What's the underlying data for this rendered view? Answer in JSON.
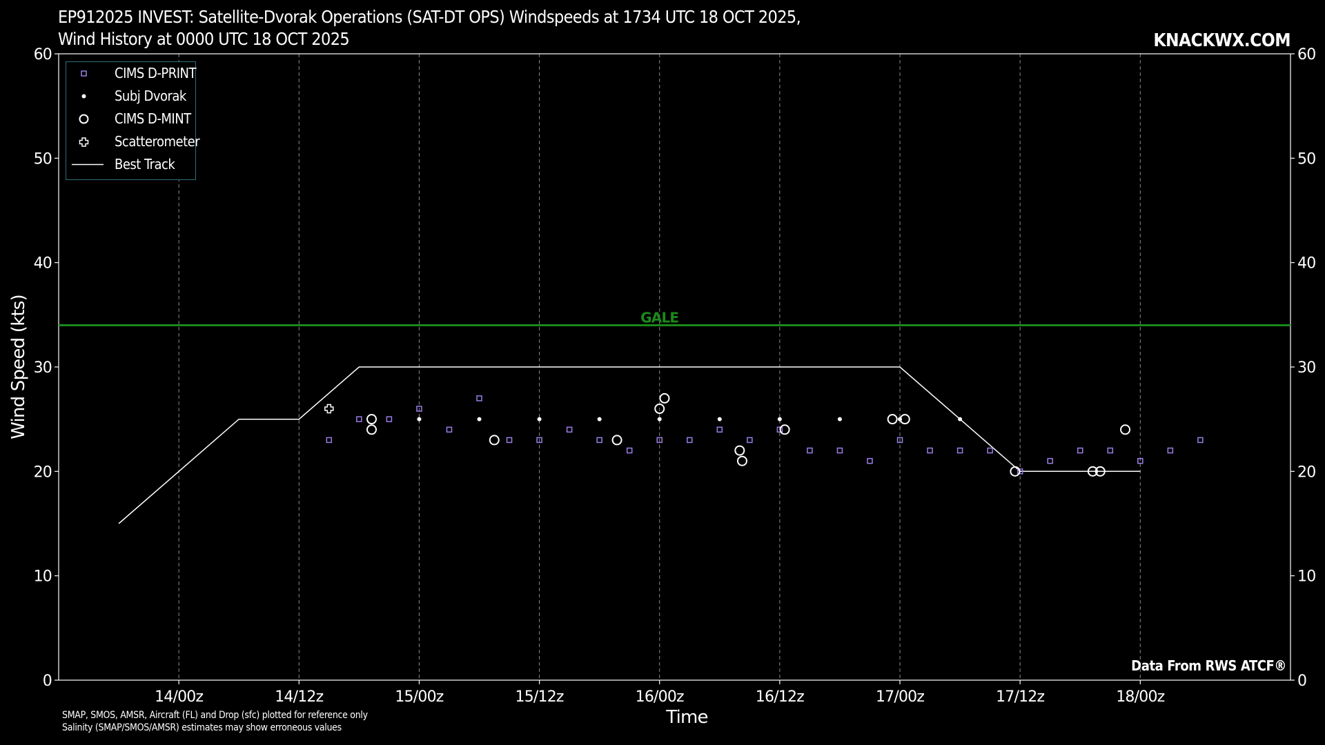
{
  "header": {
    "title_line1": "EP912025 INVEST: Satellite-Dvorak Operations (SAT-DT OPS) Windspeeds at 1734 UTC 18 OCT 2025,",
    "title_line2": "Wind History at 0000 UTC 18 OCT 2025",
    "brand": "KNACKWX.COM"
  },
  "footer": {
    "note_line1": "SMAP, SMOS, AMSR, Aircraft (FL) and Drop (sfc) plotted for reference only",
    "note_line2": "Salinity (SMAP/SMOS/AMSR) estimates may show erroneous values",
    "source": "Data From RWS ATCF®"
  },
  "colors": {
    "background": "#000000",
    "dprint": "#9b7fe8",
    "gale": "#1a8a1a",
    "best_track": "#ffffff",
    "grid": "#8a8a8a",
    "legend_border": "#2f6f78"
  },
  "chart_data": {
    "type": "scatter",
    "title": "EP912025 INVEST: Satellite-Dvorak Operations (SAT-DT OPS) Windspeeds at 1734 UTC 18 OCT 2025, Wind History at 0000 UTC 18 OCT 2025",
    "xlabel": "Time",
    "ylabel": "Wind Speed (kts)",
    "xlim": [
      "13/12z",
      "18/15z"
    ],
    "ylim": [
      0,
      60
    ],
    "y_ticks": [
      0,
      10,
      20,
      30,
      40,
      50,
      60
    ],
    "x_ticks": [
      "14/00z",
      "14/12z",
      "15/00z",
      "15/12z",
      "16/00z",
      "16/12z",
      "17/00z",
      "17/12z",
      "18/00z"
    ],
    "grid": "vertical dashed lines at x ticks",
    "legend_position": "top-left",
    "reference_lines": [
      {
        "label": "GALE",
        "y": 34,
        "color": "#1a8a1a"
      }
    ],
    "series": [
      {
        "name": "CIMS D-PRINT",
        "marker": "square",
        "color": "#9b7fe8",
        "points": [
          [
            "14/15z",
            23
          ],
          [
            "14/18z",
            25
          ],
          [
            "14/21z",
            25
          ],
          [
            "15/00z",
            26
          ],
          [
            "15/03z",
            24
          ],
          [
            "15/06z",
            27
          ],
          [
            "15/09z",
            23
          ],
          [
            "15/12z",
            23
          ],
          [
            "15/15z",
            24
          ],
          [
            "15/18z",
            23
          ],
          [
            "15/21z",
            22
          ],
          [
            "16/00z",
            23
          ],
          [
            "16/03z",
            23
          ],
          [
            "16/06z",
            24
          ],
          [
            "16/09z",
            23
          ],
          [
            "16/12z",
            24
          ],
          [
            "16/15z",
            22
          ],
          [
            "16/18z",
            22
          ],
          [
            "16/21z",
            21
          ],
          [
            "17/00z",
            23
          ],
          [
            "17/03z",
            22
          ],
          [
            "17/06z",
            22
          ],
          [
            "17/09z",
            22
          ],
          [
            "17/12z",
            20
          ],
          [
            "17/15z",
            21
          ],
          [
            "17/18z",
            22
          ],
          [
            "17/21z",
            22
          ],
          [
            "18/00z",
            21
          ],
          [
            "18/03z",
            22
          ],
          [
            "18/06z",
            23
          ]
        ]
      },
      {
        "name": "Subj Dvorak",
        "marker": "dot",
        "color": "#ffffff",
        "points": [
          [
            "15/00z",
            25
          ],
          [
            "15/06z",
            25
          ],
          [
            "15/12z",
            25
          ],
          [
            "15/18z",
            25
          ],
          [
            "16/00z",
            25
          ],
          [
            "16/06z",
            25
          ],
          [
            "16/12z",
            25
          ],
          [
            "16/18z",
            25
          ],
          [
            "17/00z",
            25
          ],
          [
            "17/06z",
            25
          ]
        ]
      },
      {
        "name": "CIMS D-MINT",
        "marker": "circle",
        "color": "#ffffff",
        "points": [
          [
            "14/19:15z",
            25
          ],
          [
            "14/19:15z",
            24
          ],
          [
            "15/07:30z",
            23
          ],
          [
            "15/19:45z",
            23
          ],
          [
            "16/00:00z",
            26
          ],
          [
            "16/00:30z",
            27
          ],
          [
            "16/08:00z",
            22
          ],
          [
            "16/08:15z",
            21
          ],
          [
            "16/12:30z",
            24
          ],
          [
            "16/23:15z",
            25
          ],
          [
            "17/00:30z",
            25
          ],
          [
            "17/11:30z",
            20
          ],
          [
            "17/19:15z",
            20
          ],
          [
            "17/20:00z",
            20
          ],
          [
            "17/22:30z",
            24
          ]
        ]
      },
      {
        "name": "Scatterometer",
        "marker": "plus",
        "color": "#ffffff",
        "points": [
          [
            "14/15z",
            26
          ]
        ]
      },
      {
        "name": "Best Track",
        "marker": "line",
        "color": "#ffffff",
        "points": [
          [
            "13/18z",
            15
          ],
          [
            "14/06z",
            25
          ],
          [
            "14/12z",
            25
          ],
          [
            "14/18z",
            30
          ],
          [
            "17/00z",
            30
          ],
          [
            "17/12z",
            20
          ],
          [
            "18/00z",
            20
          ]
        ]
      }
    ]
  }
}
